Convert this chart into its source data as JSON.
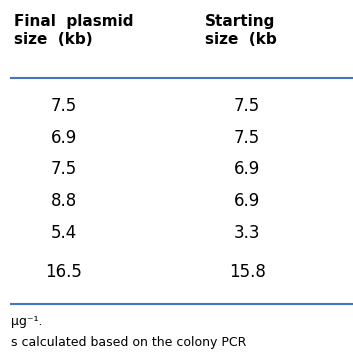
{
  "col1_header": "Final  plasmid\nsize  (kb)",
  "col2_header": "Starting\nsize  (kb",
  "col1_values": [
    "7.5",
    "6.9",
    "7.5",
    "8.8",
    "5.4",
    "16.5"
  ],
  "col2_values": [
    "7.5",
    "7.5",
    "6.9",
    "6.9",
    "3.3",
    "15.8"
  ],
  "footer_line1": "μg⁻¹.",
  "footer_line2": "s calculated based on the colony PCR",
  "background_color": "#ffffff",
  "header_color": "#000000",
  "text_color": "#000000",
  "line_color": "#4472c4",
  "header_fontsize": 11,
  "data_fontsize": 12,
  "footer_fontsize": 9
}
